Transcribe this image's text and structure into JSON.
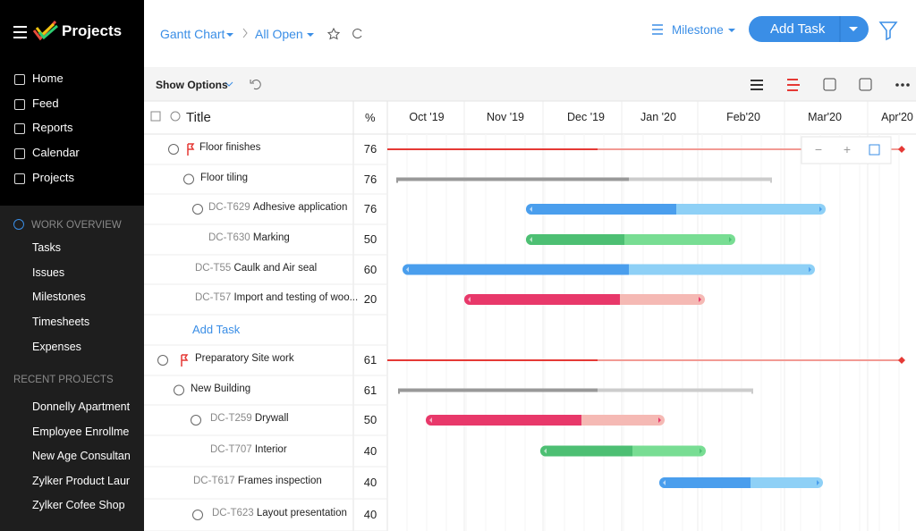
{
  "app": {
    "name": "Projects"
  },
  "nav": [
    "Home",
    "Feed",
    "Reports",
    "Calendar",
    "Projects"
  ],
  "work_overview": {
    "title": "WORK OVERVIEW",
    "items": [
      "Tasks",
      "Issues",
      "Milestones",
      "Timesheets",
      "Expenses"
    ]
  },
  "recent_projects": {
    "title": "RECENT PROJECTS",
    "items": [
      "Donnelly Apartments",
      "Employee Enrollment",
      "New Age Consultancy",
      "Zylker Product Launch",
      "Zylker Cofee Shop"
    ]
  },
  "toolbar": {
    "view": "Gantt Chart",
    "filter": "All Open",
    "group": "Milestone",
    "add_task": "Add Task",
    "show_options": "Show Options"
  },
  "table": {
    "columns": [
      "Title",
      "%"
    ],
    "timeline": [
      "Oct '19",
      "Nov '19",
      "Dec '19",
      "Jan '20",
      "Feb'20",
      "Mar'20",
      "Apr'20"
    ],
    "rows": [
      {
        "title": "Floor finishes",
        "percent": 76
      },
      {
        "title": "Floor tiling",
        "percent": 76
      },
      {
        "id": "DC-T629",
        "title": "Adhesive application",
        "percent": 76
      },
      {
        "id": "DC-T630",
        "title": "Marking",
        "percent": 50
      },
      {
        "id": "DC-T55",
        "title": "Caulk and Air seal",
        "percent": 60
      },
      {
        "id": "DC-T57",
        "title": "Import and testing of woo...",
        "percent": 20
      },
      {
        "title": "Add Task"
      },
      {
        "title": "Preparatory Site work",
        "percent": 61
      },
      {
        "title": "New Building",
        "percent": 61
      },
      {
        "id": "DC-T259",
        "title": "Drywall",
        "percent": 50
      },
      {
        "id": "DC-T707",
        "title": "Interior",
        "percent": 40
      },
      {
        "id": "DC-T617",
        "title": "Frames inspection",
        "percent": 40
      },
      {
        "id": "DC-T623",
        "title": "Layout presentation",
        "percent": 40
      }
    ]
  }
}
